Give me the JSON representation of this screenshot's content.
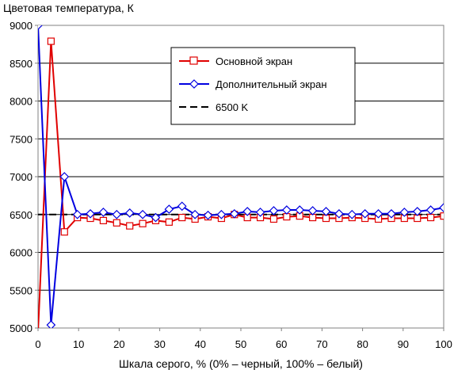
{
  "chart_data": {
    "type": "line",
    "title": "Цветовая температура, К",
    "xlabel": "Шкала серого, % (0% – черный, 100% – белый)",
    "ylabel": "",
    "xlim": [
      0,
      100
    ],
    "ylim": [
      5000,
      9000
    ],
    "x_ticks": [
      0,
      10,
      20,
      30,
      40,
      50,
      60,
      70,
      80,
      90,
      100
    ],
    "y_ticks": [
      5000,
      5500,
      6000,
      6500,
      7000,
      7500,
      8000,
      8500,
      9000
    ],
    "x_tick_labels": [
      "0",
      "10",
      "20",
      "30",
      "40",
      "50",
      "60",
      "70",
      "80",
      "90",
      "100"
    ],
    "y_tick_labels": [
      "5000",
      "5500",
      "6000",
      "6500",
      "7000",
      "7500",
      "8000",
      "8500",
      "9000"
    ],
    "grid": {
      "horizontal": true,
      "vertical": false
    },
    "legend_position": "top-right",
    "series": [
      {
        "name": "Основной экран",
        "color": "#e00000",
        "marker": "square",
        "x": [
          0,
          3.2,
          6.5,
          9.7,
          12.9,
          16.1,
          19.4,
          22.6,
          25.8,
          29.0,
          32.3,
          35.5,
          38.7,
          41.9,
          45.2,
          48.4,
          51.6,
          54.8,
          58.1,
          61.3,
          64.5,
          67.7,
          71.0,
          74.2,
          77.4,
          80.6,
          83.9,
          87.1,
          90.3,
          93.5,
          96.8,
          100
        ],
        "y": [
          4950,
          8790,
          6270,
          6460,
          6450,
          6420,
          6390,
          6350,
          6380,
          6420,
          6400,
          6460,
          6440,
          6470,
          6450,
          6500,
          6460,
          6460,
          6440,
          6470,
          6480,
          6460,
          6450,
          6450,
          6460,
          6450,
          6440,
          6450,
          6450,
          6450,
          6460,
          6480
        ]
      },
      {
        "name": "Дополнительный экран",
        "color": "#0000e0",
        "marker": "diamond",
        "x": [
          0,
          3.2,
          6.5,
          9.7,
          12.9,
          16.1,
          19.4,
          22.6,
          25.8,
          29.0,
          32.3,
          35.5,
          38.7,
          41.9,
          45.2,
          48.4,
          51.6,
          54.8,
          58.1,
          61.3,
          64.5,
          67.7,
          71.0,
          74.2,
          77.4,
          80.6,
          83.9,
          87.1,
          90.3,
          93.5,
          96.8,
          100
        ],
        "y": [
          9000,
          5040,
          7000,
          6500,
          6510,
          6530,
          6500,
          6520,
          6500,
          6460,
          6570,
          6610,
          6500,
          6490,
          6500,
          6510,
          6540,
          6530,
          6550,
          6560,
          6560,
          6550,
          6540,
          6510,
          6500,
          6510,
          6510,
          6510,
          6530,
          6540,
          6560,
          6590
        ]
      },
      {
        "name": "6500 K",
        "color": "#000000",
        "marker": "none",
        "dashed": true,
        "x": [
          0,
          100
        ],
        "y": [
          6500,
          6500
        ]
      }
    ]
  }
}
